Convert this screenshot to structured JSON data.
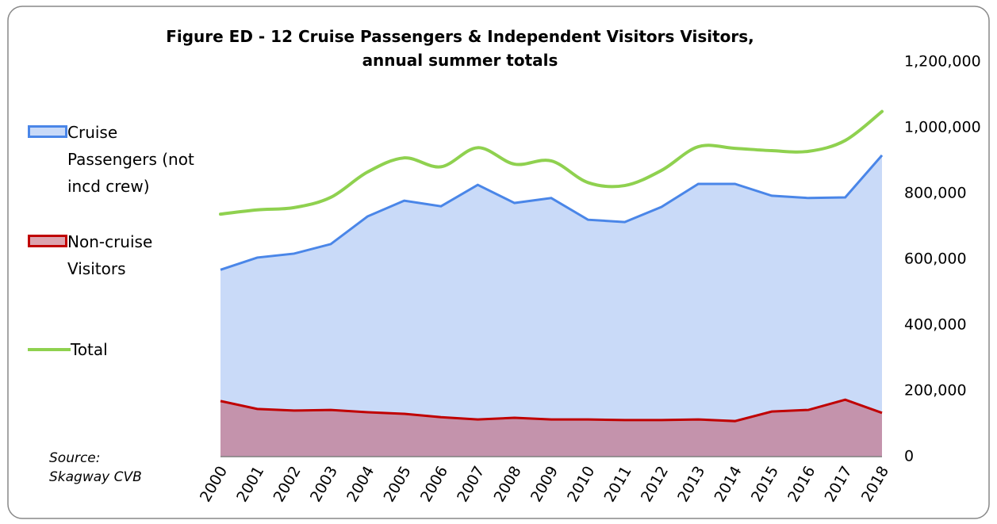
{
  "chart_data": {
    "type": "area",
    "title": [
      "Figure ED -  12 Cruise Passengers &  Independent Visitors Visitors,",
      "annual summer totals"
    ],
    "source": [
      "Source:",
      "Skagway CVB"
    ],
    "categories": [
      "2000",
      "2001",
      "2002",
      "2003",
      "2004",
      "2005",
      "2006",
      "2007",
      "2008",
      "2009",
      "2010",
      "2011",
      "2012",
      "2013",
      "2014",
      "2015",
      "2016",
      "2017",
      "2018"
    ],
    "series": [
      {
        "name": "Cruise Passengers (not incd crew)",
        "color": "#4a86e8",
        "fill": "#c9daf8",
        "kind": "area",
        "values": [
          568000,
          605000,
          617000,
          646000,
          730000,
          778000,
          761000,
          826000,
          771000,
          786000,
          720000,
          713000,
          759000,
          829000,
          829000,
          793000,
          786000,
          788000,
          916000
        ]
      },
      {
        "name": "Non-cruise Visitors",
        "color": "#c00000",
        "fill": "rgba(192,90,110,0.55)",
        "kind": "area",
        "values": [
          169000,
          145000,
          140000,
          142000,
          135000,
          130000,
          120000,
          113000,
          118000,
          113000,
          113000,
          111000,
          111000,
          113000,
          108000,
          137000,
          142000,
          173000,
          133000
        ]
      },
      {
        "name": "Total",
        "color": "#8fd14f",
        "kind": "smooth-line",
        "values": [
          737000,
          750000,
          757000,
          788000,
          865000,
          908000,
          881000,
          939000,
          889000,
          899000,
          833000,
          824000,
          870000,
          942000,
          937000,
          930000,
          928000,
          961000,
          1049000
        ]
      }
    ],
    "ylim": [
      0,
      1200000
    ],
    "yticks": [
      0,
      {
        "value": 200000,
        "label": "200,000"
      },
      {
        "value": 400000,
        "label": "400,000"
      },
      {
        "value": 600000,
        "label": "600,000"
      },
      {
        "value": 800000,
        "label": "800,000"
      },
      {
        "value": 1000000,
        "label": "1,000,000"
      },
      {
        "value": 1200000,
        "label": "1,200,000"
      }
    ],
    "y_axis_side": "right",
    "legend": "left",
    "grid": false
  }
}
